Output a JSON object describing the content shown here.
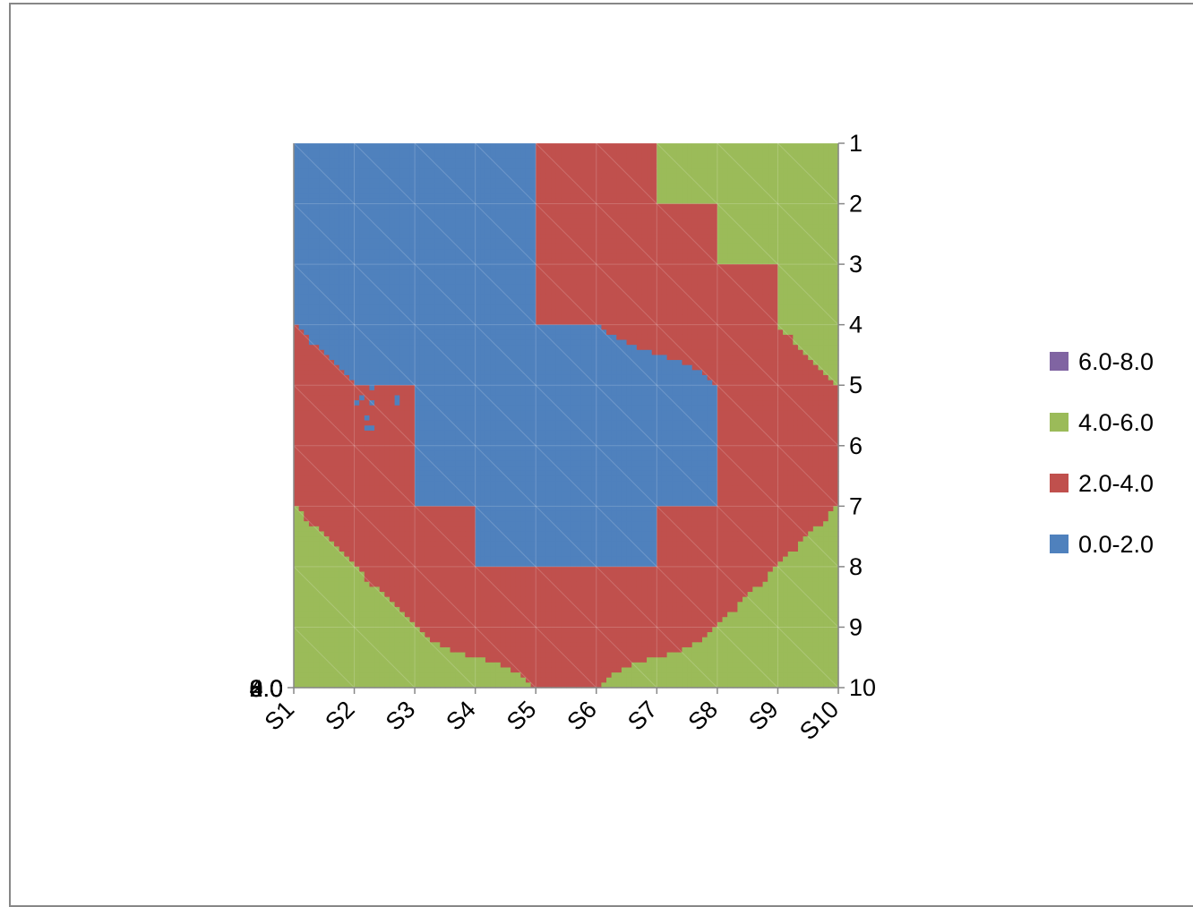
{
  "chart_data": {
    "type": "surface-contour",
    "x_categories": [
      "S1",
      "S2",
      "S3",
      "S4",
      "S5",
      "S6",
      "S7",
      "S8",
      "S9",
      "S10"
    ],
    "y_categories": [
      "1",
      "2",
      "3",
      "4",
      "5",
      "6",
      "7",
      "8",
      "9",
      "10"
    ],
    "value_axis_ticks": [
      "0.0",
      "2.0",
      "4.0",
      "6.0",
      "8.0"
    ],
    "legend_position": "right",
    "bands": [
      {
        "name": "6.0-8.0",
        "range": [
          6,
          8
        ],
        "color": "#8064A2"
      },
      {
        "name": "4.0-6.0",
        "range": [
          4,
          6
        ],
        "color": "#9BBB59"
      },
      {
        "name": "2.0-4.0",
        "range": [
          2,
          4
        ],
        "color": "#C0504D"
      },
      {
        "name": "0.0-2.0",
        "range": [
          0,
          2
        ],
        "color": "#4F81BD"
      }
    ],
    "values": [
      [
        2.0,
        1.0,
        1.0,
        1.0,
        2.0,
        3.0,
        4.0,
        5.0,
        5.0,
        6.0
      ],
      [
        1.0,
        0.5,
        0.5,
        1.0,
        2.0,
        3.0,
        4.0,
        4.0,
        5.0,
        5.0
      ],
      [
        1.0,
        0.5,
        0.5,
        1.0,
        2.0,
        3.0,
        3.0,
        4.0,
        4.0,
        5.0
      ],
      [
        2.0,
        1.0,
        1.0,
        2.0,
        2.0,
        2.0,
        3.0,
        3.0,
        4.0,
        5.0
      ],
      [
        3.0,
        2.0,
        2.0,
        1.0,
        0.5,
        0.5,
        1.0,
        2.0,
        3.0,
        4.0
      ],
      [
        3.0,
        2.0,
        2.0,
        1.0,
        0.5,
        0.5,
        1.0,
        2.0,
        3.0,
        4.0
      ],
      [
        4.0,
        3.0,
        2.0,
        2.0,
        1.0,
        1.0,
        2.0,
        2.0,
        3.0,
        4.0
      ],
      [
        5.0,
        4.0,
        3.0,
        2.0,
        2.0,
        2.0,
        2.0,
        3.0,
        4.0,
        5.0
      ],
      [
        5.0,
        5.0,
        4.0,
        3.0,
        3.0,
        3.0,
        3.0,
        4.0,
        5.0,
        5.0
      ],
      [
        6.0,
        5.0,
        5.0,
        5.0,
        4.0,
        4.0,
        5.0,
        5.0,
        5.0,
        6.0
      ]
    ]
  }
}
